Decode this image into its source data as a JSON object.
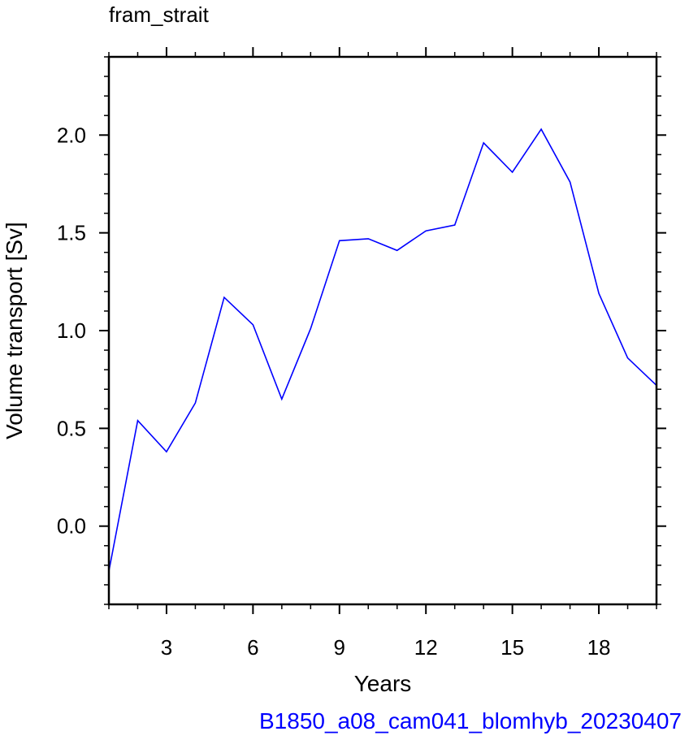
{
  "chart_data": {
    "type": "line",
    "title": "fram_strait",
    "xlabel": "Years",
    "ylabel": "Volume transport [Sv]",
    "footer": "B1850_a08_cam041_blomhyb_20230407",
    "xlim": [
      1,
      20
    ],
    "ylim": [
      -0.4,
      2.4
    ],
    "x_ticks": [
      3,
      6,
      9,
      12,
      15,
      18
    ],
    "y_ticks": [
      0.0,
      0.5,
      1.0,
      1.5,
      2.0
    ],
    "y_tick_labels": [
      "0.0",
      "0.5",
      "1.0",
      "1.5",
      "2.0"
    ],
    "x_minor_step": 1,
    "y_minor_step": 0.1,
    "grid": false,
    "series": [
      {
        "color": "#0000ff",
        "x": [
          1,
          2,
          3,
          4,
          5,
          6,
          7,
          8,
          9,
          10,
          11,
          12,
          13,
          14,
          15,
          16,
          17,
          18,
          19,
          20
        ],
        "values": [
          -0.23,
          0.54,
          0.38,
          0.63,
          1.17,
          1.03,
          0.65,
          1.01,
          1.46,
          1.47,
          1.41,
          1.51,
          1.54,
          1.96,
          1.81,
          2.03,
          1.76,
          1.19,
          0.86,
          0.72
        ]
      }
    ],
    "footer_color": "#0000ff"
  }
}
